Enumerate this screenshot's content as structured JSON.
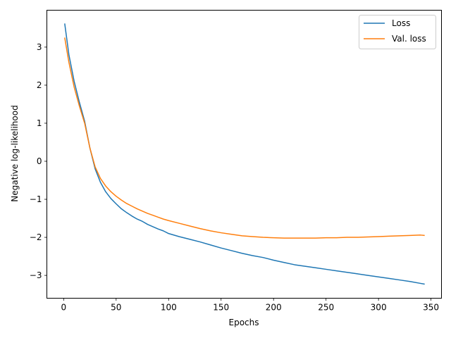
{
  "chart_data": {
    "type": "line",
    "title": "",
    "xlabel": "Epochs",
    "ylabel": "Negative log-likelihood",
    "xlim": [
      -16,
      360
    ],
    "ylim": [
      -3.6,
      3.97
    ],
    "xticks": [
      0,
      50,
      100,
      150,
      200,
      250,
      300,
      350
    ],
    "yticks": [
      -3,
      -2,
      -1,
      0,
      1,
      2,
      3
    ],
    "grid": false,
    "legend": "top-right",
    "series": [
      {
        "name": "Loss",
        "color": "#1f77b4",
        "x": [
          1,
          5,
          10,
          15,
          20,
          25,
          30,
          35,
          40,
          45,
          50,
          55,
          60,
          65,
          70,
          75,
          80,
          85,
          90,
          95,
          100,
          110,
          120,
          130,
          140,
          150,
          160,
          170,
          180,
          190,
          200,
          210,
          220,
          230,
          240,
          250,
          260,
          270,
          280,
          290,
          300,
          310,
          320,
          330,
          340,
          344
        ],
        "y": [
          3.62,
          2.8,
          2.1,
          1.55,
          1.05,
          0.35,
          -0.2,
          -0.55,
          -0.8,
          -0.98,
          -1.12,
          -1.25,
          -1.35,
          -1.44,
          -1.52,
          -1.58,
          -1.66,
          -1.72,
          -1.78,
          -1.83,
          -1.9,
          -1.98,
          -2.05,
          -2.12,
          -2.2,
          -2.28,
          -2.35,
          -2.42,
          -2.48,
          -2.53,
          -2.6,
          -2.66,
          -2.72,
          -2.76,
          -2.8,
          -2.84,
          -2.88,
          -2.92,
          -2.96,
          -3.0,
          -3.04,
          -3.08,
          -3.12,
          -3.16,
          -3.21,
          -3.23
        ]
      },
      {
        "name": "Val. loss",
        "color": "#ff7f0e",
        "x": [
          1,
          5,
          10,
          15,
          20,
          25,
          30,
          35,
          40,
          45,
          50,
          55,
          60,
          65,
          70,
          75,
          80,
          85,
          90,
          95,
          100,
          110,
          120,
          130,
          140,
          150,
          160,
          170,
          180,
          190,
          200,
          210,
          220,
          230,
          240,
          250,
          260,
          270,
          280,
          290,
          300,
          310,
          320,
          330,
          340,
          344
        ],
        "y": [
          3.25,
          2.6,
          1.95,
          1.45,
          1.0,
          0.35,
          -0.15,
          -0.45,
          -0.65,
          -0.8,
          -0.92,
          -1.02,
          -1.11,
          -1.18,
          -1.25,
          -1.31,
          -1.37,
          -1.42,
          -1.47,
          -1.52,
          -1.56,
          -1.63,
          -1.7,
          -1.77,
          -1.83,
          -1.88,
          -1.92,
          -1.96,
          -1.98,
          -2.0,
          -2.01,
          -2.02,
          -2.02,
          -2.02,
          -2.02,
          -2.01,
          -2.01,
          -2.0,
          -2.0,
          -1.99,
          -1.98,
          -1.97,
          -1.96,
          -1.95,
          -1.94,
          -1.95
        ]
      }
    ]
  }
}
